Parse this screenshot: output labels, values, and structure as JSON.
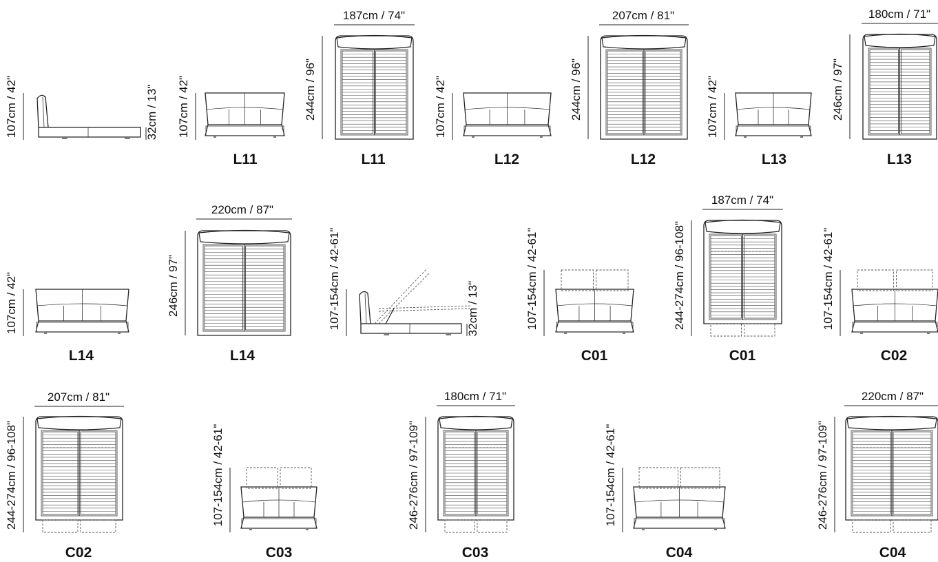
{
  "diagrams": [
    {
      "view": "side",
      "code": "",
      "height": "107cm / 42\"",
      "width": "",
      "low": "32cm / 13\""
    },
    {
      "view": "front",
      "code": "L11",
      "height": "107cm / 42\"",
      "width": ""
    },
    {
      "view": "top",
      "code": "L11",
      "height": "244cm / 96\"",
      "width": "187cm / 74\""
    },
    {
      "view": "front",
      "code": "L12",
      "height": "107cm / 42\"",
      "width": ""
    },
    {
      "view": "top",
      "code": "L12",
      "height": "244cm / 96\"",
      "width": "207cm / 81\""
    },
    {
      "view": "front",
      "code": "L13",
      "height": "107cm / 42\"",
      "width": ""
    },
    {
      "view": "top",
      "code": "L13",
      "height": "246cm / 97\"",
      "width": "180cm / 71\""
    },
    {
      "view": "front",
      "code": "L14",
      "height": "107cm / 42\"",
      "width": ""
    },
    {
      "view": "top",
      "code": "L14",
      "height": "246cm / 97\"",
      "width": "220cm / 87\""
    },
    {
      "view": "side-lift",
      "code": "",
      "height": "107-154cm / 42-61\"",
      "width": "",
      "low": "32cm / 13\""
    },
    {
      "view": "front-adj",
      "code": "C01",
      "height": "107-154cm / 42-61\"",
      "width": ""
    },
    {
      "view": "top-adj",
      "code": "C01",
      "height": "244-274cm / 96-108\"",
      "width": "187cm / 74\""
    },
    {
      "view": "front-adj",
      "code": "C02",
      "height": "107-154cm / 42-61\"",
      "width": ""
    },
    {
      "view": "top-adj",
      "code": "C02",
      "height": "244-274cm / 96-108\"",
      "width": "207cm / 81\""
    },
    {
      "view": "front-adj",
      "code": "C03",
      "height": "107-154cm / 42-61\"",
      "width": ""
    },
    {
      "view": "top-adj",
      "code": "C03",
      "height": "246-276cm / 97-109\"",
      "width": "180cm / 71\""
    },
    {
      "view": "front-adj",
      "code": "C04",
      "height": "107-154cm / 42-61\"",
      "width": ""
    },
    {
      "view": "top-adj",
      "code": "C04",
      "height": "246-276cm / 97-109\"",
      "width": "220cm / 87\""
    }
  ]
}
